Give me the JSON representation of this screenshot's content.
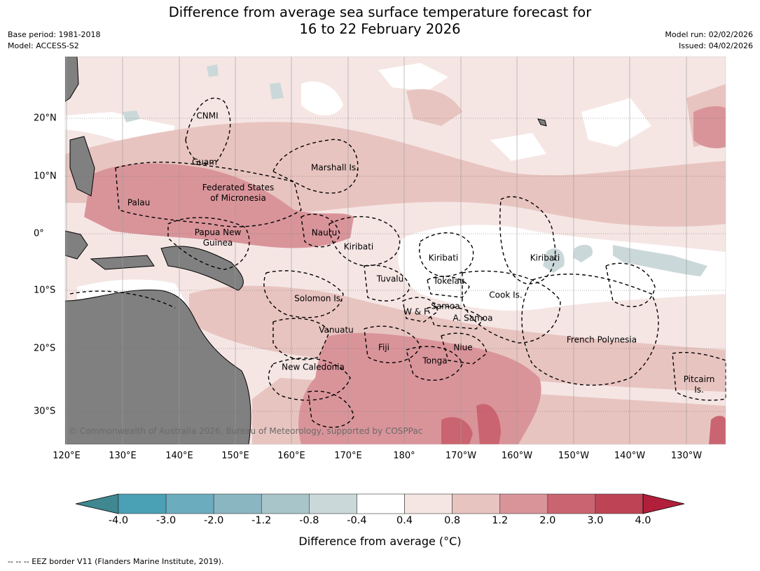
{
  "title_line1": "Difference from average sea surface temperature forecast for",
  "title_line2": "16 to 22 February 2026",
  "base_period": "Base period: 1981-2018",
  "model": "Model: ACCESS-S2",
  "model_run": "Model run: 02/02/2026",
  "issued": "Issued: 04/02/2026",
  "map": {
    "lon_labels": [
      "120°E",
      "130°E",
      "140°E",
      "150°E",
      "160°E",
      "170°E",
      "180°",
      "170°W",
      "160°W",
      "150°W",
      "140°W",
      "130°W"
    ],
    "lat_labels": [
      "20°N",
      "10°N",
      "0°",
      "10°S",
      "20°S",
      "30°S"
    ],
    "places": [
      {
        "name": "CNMI"
      },
      {
        "name": "Guam"
      },
      {
        "name": "Marshall Is."
      },
      {
        "name": "Federated States\nof Micronesia"
      },
      {
        "name": "Palau"
      },
      {
        "name": "Papua New\nGuinea"
      },
      {
        "name": "Nauru"
      },
      {
        "name": "Kiribati"
      },
      {
        "name": "Kiribati"
      },
      {
        "name": "Kiribati"
      },
      {
        "name": "Tuvalu"
      },
      {
        "name": "Tokelau"
      },
      {
        "name": "Cook Is."
      },
      {
        "name": "Solomon Is."
      },
      {
        "name": "W & F"
      },
      {
        "name": "Samoa"
      },
      {
        "name": "A. Samoa"
      },
      {
        "name": "Vanuatu"
      },
      {
        "name": "Fiji"
      },
      {
        "name": "Niue"
      },
      {
        "name": "Tonga"
      },
      {
        "name": "French Polynesia"
      },
      {
        "name": "New Caledonia"
      },
      {
        "name": "Pitcairn\nIs."
      }
    ],
    "copyright": "© Commonwealth of Australia 2026, Bureau of Meteorology, supported by COSPPac",
    "colors": {
      "land": "#808080",
      "ocean_neutral": "#ffffff"
    }
  },
  "colorbar": {
    "ticks": [
      "-4.0",
      "-3.0",
      "-2.0",
      "-1.2",
      "-0.8",
      "-0.4",
      "0.4",
      "0.8",
      "1.2",
      "2.0",
      "3.0",
      "4.0"
    ],
    "colors": [
      "#3f8791",
      "#4aa0b4",
      "#6badbe",
      "#89b6c1",
      "#a8c5ca",
      "#cbd8da",
      "#ffffff",
      "#f5e6e4",
      "#e8c4c0",
      "#d9949a",
      "#ca6470",
      "#be4455",
      "#b21f3b"
    ],
    "label": "Difference from average ($^\\circ$C)",
    "label_text": "Difference from average (°C)"
  },
  "footnote": "--  --  -- EEZ border V11 (Flanders Marine Institute, 2019)."
}
